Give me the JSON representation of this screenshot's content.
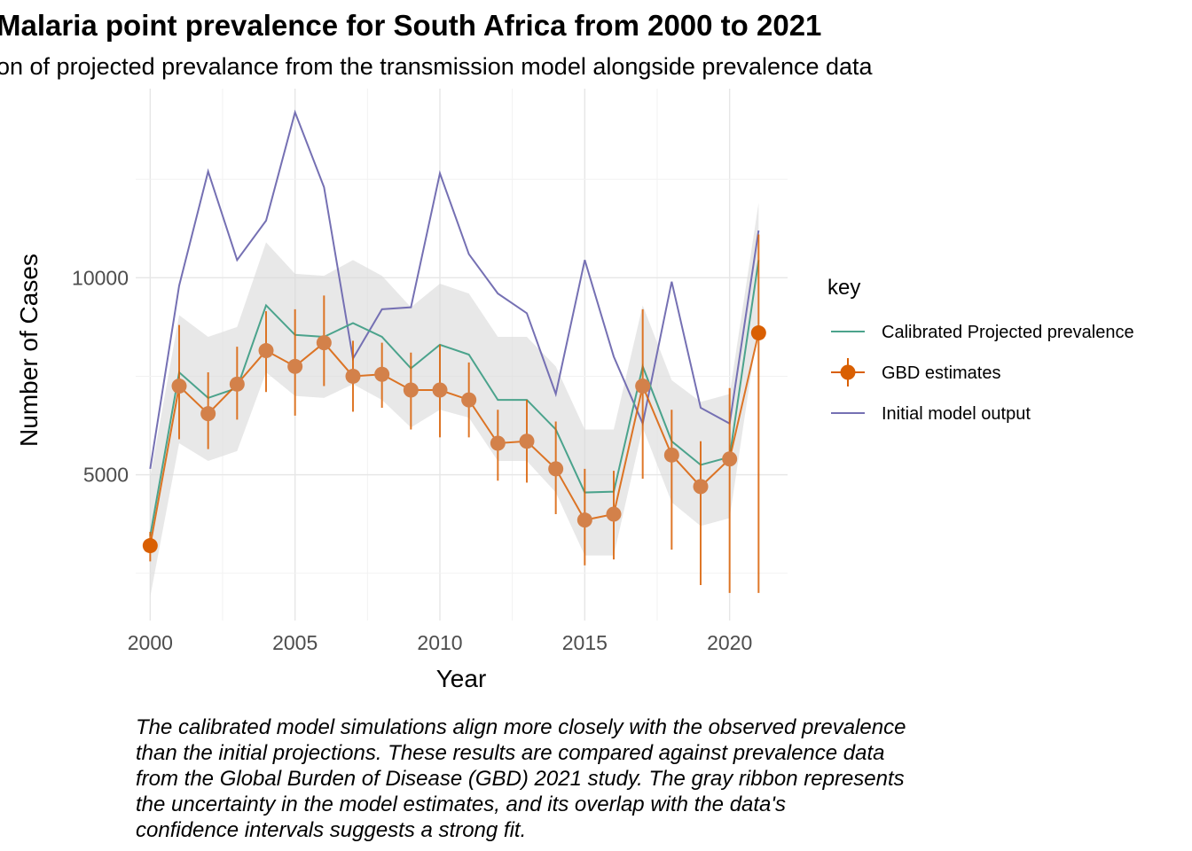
{
  "chart_data": {
    "type": "line",
    "title": "Malaria point prevalence for South Africa from 2000 to 2021",
    "subtitle": "on of projected prevalance from the transmission model alongside prevalence data",
    "xlabel": "Year",
    "ylabel": "Number of Cases",
    "xlim": [
      1999.5,
      2022
    ],
    "ylim": [
      1300,
      14800
    ],
    "x_ticks": [
      2000,
      2005,
      2010,
      2015,
      2020
    ],
    "y_ticks": [
      5000,
      10000
    ],
    "grid": true,
    "legend_position": "right",
    "legend_title": "key",
    "x": [
      2000,
      2001,
      2002,
      2003,
      2004,
      2005,
      2006,
      2007,
      2008,
      2009,
      2010,
      2011,
      2012,
      2013,
      2014,
      2015,
      2016,
      2017,
      2018,
      2019,
      2020,
      2021
    ],
    "series": [
      {
        "name": "Calibrated Projected prevalence",
        "color": "#4ba38c",
        "values": [
          3450,
          7600,
          6950,
          7200,
          9300,
          8550,
          8500,
          8850,
          8500,
          7700,
          8300,
          8050,
          6900,
          6900,
          6150,
          4550,
          4570,
          7750,
          5850,
          5250,
          5450,
          10450
        ],
        "ribbon_lower": [
          1900,
          5800,
          5350,
          5600,
          7600,
          7000,
          6950,
          7300,
          6900,
          6200,
          6650,
          6450,
          5350,
          5350,
          4550,
          2950,
          2950,
          6200,
          4300,
          3700,
          3900,
          8850
        ],
        "ribbon_upper": [
          4950,
          9050,
          8500,
          8750,
          10900,
          10100,
          10050,
          10450,
          10050,
          9250,
          9850,
          9600,
          8500,
          8500,
          7750,
          6150,
          6150,
          9300,
          7400,
          6850,
          7050,
          11900
        ]
      },
      {
        "name": "GBD estimates",
        "color": "#d95f02",
        "point_color": "#d3814a",
        "values": [
          3200,
          7250,
          6550,
          7300,
          8150,
          7750,
          8350,
          7500,
          7550,
          7150,
          7150,
          6900,
          5800,
          5850,
          5150,
          3850,
          4000,
          7250,
          5500,
          4700,
          5400,
          8600
        ],
        "error_low": [
          2800,
          5900,
          5650,
          6400,
          7100,
          6500,
          7250,
          6600,
          6700,
          6150,
          5950,
          5950,
          4850,
          4800,
          4000,
          2700,
          2850,
          4900,
          3100,
          2200,
          2000,
          2000
        ],
        "error_high": [
          3550,
          8800,
          7600,
          8250,
          9150,
          9200,
          9550,
          8400,
          8350,
          8100,
          8300,
          7850,
          6650,
          6900,
          6350,
          5150,
          5100,
          9200,
          6650,
          5850,
          7200,
          11100
        ]
      },
      {
        "name": "Initial model output",
        "color": "#7570b3",
        "values": [
          5150,
          9800,
          12700,
          10450,
          11450,
          14200,
          12300,
          7950,
          9200,
          9250,
          12650,
          10600,
          9600,
          9100,
          7050,
          10450,
          8000,
          6300,
          9900,
          6700,
          6300,
          11200
        ]
      }
    ],
    "annotation": [
      "The calibrated model simulations align more closely with the observed prevalence",
      "than the initial projections. These results are compared against prevalence data",
      "from the Global Burden of Disease (GBD) 2021 study. The gray ribbon represents",
      "the uncertainty in the model estimates, and its overlap with the data's",
      "confidence intervals suggests a strong fit."
    ]
  }
}
